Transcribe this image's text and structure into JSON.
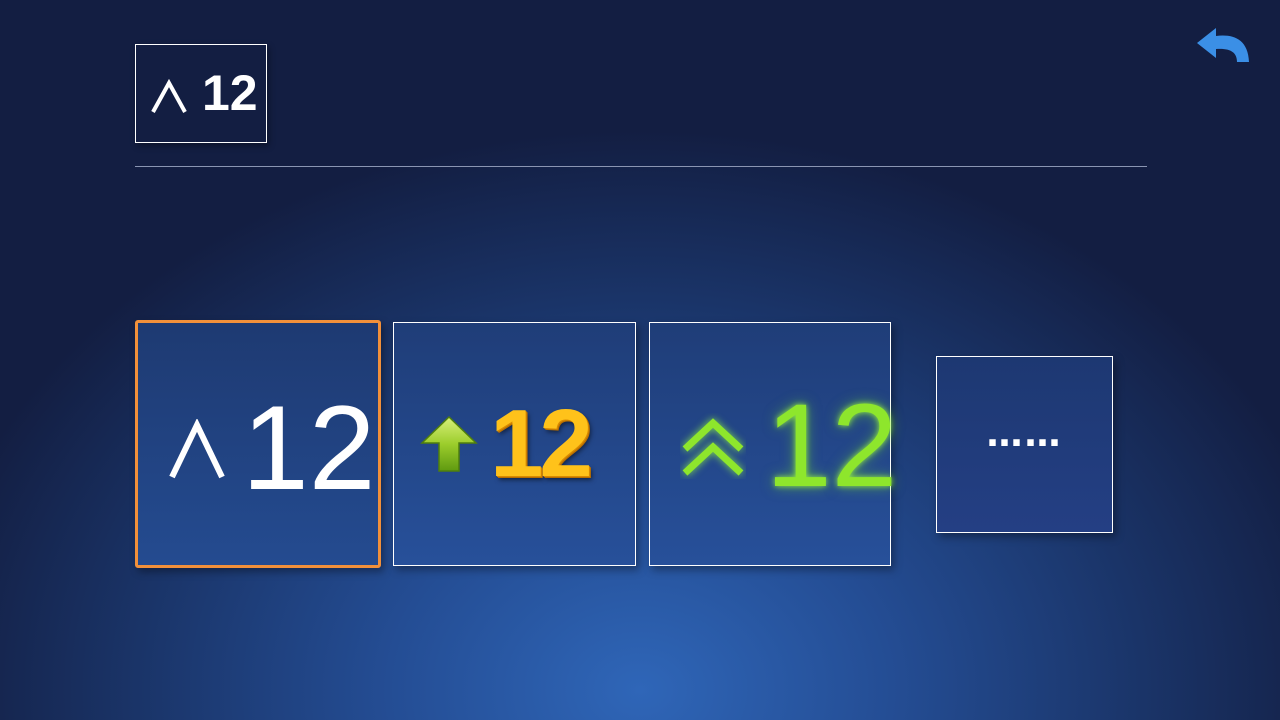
{
  "preview": {
    "value": "12",
    "icon": "caret-up-icon"
  },
  "styles": [
    {
      "label": "12",
      "icon": "caret-up-icon",
      "color": "#ffffff",
      "selected": true
    },
    {
      "label": "12",
      "icon": "up-arrow-icon",
      "color": "#ffc21a",
      "selected": false
    },
    {
      "label": "12",
      "icon": "double-chevron-up-icon",
      "color": "#8ee62c",
      "selected": false
    },
    {
      "label": "……",
      "icon": "",
      "color": "#ffffff",
      "selected": false
    }
  ],
  "colors": {
    "selection_border": "#f2903a",
    "back_icon": "#3b8fe6"
  },
  "back_button": {
    "icon": "undo-arrow-icon"
  }
}
